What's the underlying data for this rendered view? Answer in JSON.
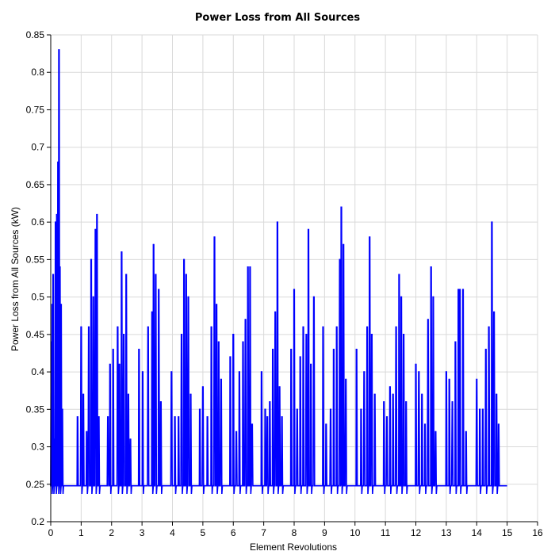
{
  "chart_data": {
    "type": "line",
    "title": "Power Loss from All Sources",
    "xlabel": "Element Revolutions",
    "ylabel": "Power Loss from All Sources (kW)",
    "xlim": [
      0,
      16
    ],
    "ylim": [
      0.2,
      0.85
    ],
    "x_ticks": [
      "0",
      "1",
      "2",
      "3",
      "4",
      "5",
      "6",
      "7",
      "8",
      "9",
      "10",
      "11",
      "12",
      "13",
      "14",
      "15",
      "16"
    ],
    "y_ticks": [
      "0.2",
      "0.25",
      "0.3",
      "0.35",
      "0.4",
      "0.45",
      "0.5",
      "0.55",
      "0.6",
      "0.65",
      "0.7",
      "0.75",
      "0.8",
      "0.85"
    ],
    "grid": true,
    "baseline": 0.248,
    "x_end": 15.0,
    "series": [
      {
        "color": "#0000ff",
        "spikes": [
          [
            0.02,
            0.44
          ],
          [
            0.05,
            0.49
          ],
          [
            0.08,
            0.53
          ],
          [
            0.12,
            0.31
          ],
          [
            0.16,
            0.6
          ],
          [
            0.2,
            0.61
          ],
          [
            0.24,
            0.68
          ],
          [
            0.27,
            0.83
          ],
          [
            0.3,
            0.54
          ],
          [
            0.34,
            0.49
          ],
          [
            0.38,
            0.35
          ],
          [
            0.88,
            0.34
          ],
          [
            1.0,
            0.46
          ],
          [
            1.07,
            0.37
          ],
          [
            1.18,
            0.32
          ],
          [
            1.25,
            0.46
          ],
          [
            1.33,
            0.55
          ],
          [
            1.4,
            0.5
          ],
          [
            1.47,
            0.59
          ],
          [
            1.52,
            0.61
          ],
          [
            1.58,
            0.34
          ],
          [
            1.88,
            0.34
          ],
          [
            1.95,
            0.41
          ],
          [
            2.05,
            0.43
          ],
          [
            2.2,
            0.46
          ],
          [
            2.26,
            0.41
          ],
          [
            2.33,
            0.56
          ],
          [
            2.4,
            0.45
          ],
          [
            2.48,
            0.53
          ],
          [
            2.55,
            0.37
          ],
          [
            2.62,
            0.31
          ],
          [
            2.9,
            0.43
          ],
          [
            3.02,
            0.4
          ],
          [
            3.2,
            0.46
          ],
          [
            3.33,
            0.48
          ],
          [
            3.38,
            0.57
          ],
          [
            3.45,
            0.53
          ],
          [
            3.55,
            0.51
          ],
          [
            3.62,
            0.36
          ],
          [
            3.97,
            0.4
          ],
          [
            4.08,
            0.34
          ],
          [
            4.2,
            0.34
          ],
          [
            4.3,
            0.45
          ],
          [
            4.38,
            0.55
          ],
          [
            4.45,
            0.53
          ],
          [
            4.52,
            0.5
          ],
          [
            4.6,
            0.37
          ],
          [
            4.9,
            0.35
          ],
          [
            5.0,
            0.38
          ],
          [
            5.15,
            0.34
          ],
          [
            5.28,
            0.46
          ],
          [
            5.38,
            0.58
          ],
          [
            5.45,
            0.49
          ],
          [
            5.52,
            0.44
          ],
          [
            5.6,
            0.39
          ],
          [
            5.9,
            0.42
          ],
          [
            6.0,
            0.45
          ],
          [
            6.1,
            0.32
          ],
          [
            6.2,
            0.4
          ],
          [
            6.32,
            0.44
          ],
          [
            6.4,
            0.47
          ],
          [
            6.48,
            0.54
          ],
          [
            6.55,
            0.54
          ],
          [
            6.62,
            0.33
          ],
          [
            6.93,
            0.4
          ],
          [
            7.05,
            0.35
          ],
          [
            7.12,
            0.34
          ],
          [
            7.2,
            0.36
          ],
          [
            7.3,
            0.43
          ],
          [
            7.38,
            0.48
          ],
          [
            7.45,
            0.6
          ],
          [
            7.52,
            0.38
          ],
          [
            7.6,
            0.34
          ],
          [
            7.9,
            0.43
          ],
          [
            8.0,
            0.51
          ],
          [
            8.1,
            0.35
          ],
          [
            8.2,
            0.42
          ],
          [
            8.3,
            0.46
          ],
          [
            8.4,
            0.45
          ],
          [
            8.47,
            0.59
          ],
          [
            8.55,
            0.41
          ],
          [
            8.65,
            0.5
          ],
          [
            8.95,
            0.46
          ],
          [
            9.05,
            0.33
          ],
          [
            9.2,
            0.35
          ],
          [
            9.3,
            0.43
          ],
          [
            9.4,
            0.46
          ],
          [
            9.5,
            0.55
          ],
          [
            9.55,
            0.62
          ],
          [
            9.62,
            0.57
          ],
          [
            9.7,
            0.39
          ],
          [
            10.05,
            0.43
          ],
          [
            10.2,
            0.35
          ],
          [
            10.3,
            0.4
          ],
          [
            10.4,
            0.46
          ],
          [
            10.48,
            0.58
          ],
          [
            10.55,
            0.45
          ],
          [
            10.65,
            0.37
          ],
          [
            10.95,
            0.36
          ],
          [
            11.05,
            0.34
          ],
          [
            11.15,
            0.38
          ],
          [
            11.25,
            0.37
          ],
          [
            11.35,
            0.46
          ],
          [
            11.45,
            0.53
          ],
          [
            11.52,
            0.5
          ],
          [
            11.6,
            0.45
          ],
          [
            11.68,
            0.36
          ],
          [
            12.0,
            0.41
          ],
          [
            12.1,
            0.4
          ],
          [
            12.2,
            0.37
          ],
          [
            12.3,
            0.33
          ],
          [
            12.4,
            0.47
          ],
          [
            12.5,
            0.54
          ],
          [
            12.57,
            0.5
          ],
          [
            12.65,
            0.32
          ],
          [
            13.0,
            0.4
          ],
          [
            13.1,
            0.39
          ],
          [
            13.2,
            0.36
          ],
          [
            13.3,
            0.44
          ],
          [
            13.4,
            0.51
          ],
          [
            13.45,
            0.51
          ],
          [
            13.55,
            0.51
          ],
          [
            13.65,
            0.32
          ],
          [
            14.0,
            0.39
          ],
          [
            14.1,
            0.35
          ],
          [
            14.2,
            0.35
          ],
          [
            14.3,
            0.43
          ],
          [
            14.4,
            0.46
          ],
          [
            14.5,
            0.6
          ],
          [
            14.57,
            0.48
          ],
          [
            14.65,
            0.37
          ],
          [
            14.72,
            0.33
          ]
        ]
      }
    ]
  }
}
